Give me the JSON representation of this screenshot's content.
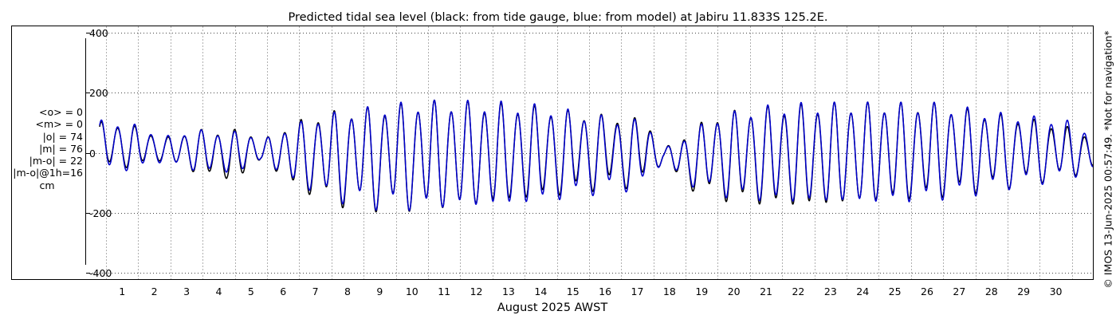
{
  "stats": {
    "lines": [
      "<o> = 0",
      "<m> = 0",
      "|o| = 74",
      "|m| = 76",
      "|m-o| = 22",
      "|m-o|@1h=16"
    ],
    "unit": "cm"
  },
  "credit": "© IMOS 13-Jun-2025 00:57:49. *Not for navigation*",
  "colors": {
    "observed": "#000000",
    "model": "#0000cc",
    "grid": "#b0b0b0"
  },
  "chart_data": {
    "type": "line",
    "title": "Predicted tidal sea level (black: from tide gauge, blue: from model) at Jabiru 11.833S 125.2E.",
    "xlabel": "August 2025 AWST",
    "ylabel": "",
    "xlim": [
      0.3,
      31.15
    ],
    "ylim": [
      -420,
      420
    ],
    "x_ticks": [
      1,
      2,
      3,
      4,
      5,
      6,
      7,
      8,
      9,
      10,
      11,
      12,
      13,
      14,
      15,
      16,
      17,
      18,
      19,
      20,
      21,
      22,
      23,
      24,
      25,
      26,
      27,
      28,
      29,
      30
    ],
    "x_tick_labels": [
      "1",
      "2",
      "3",
      "4",
      "5",
      "6",
      "7",
      "8",
      "9",
      "10",
      "11",
      "12",
      "13",
      "14",
      "15",
      "16",
      "17",
      "18",
      "19",
      "20",
      "21",
      "22",
      "23",
      "24",
      "25",
      "26",
      "27",
      "28",
      "29",
      "30"
    ],
    "y_ticks": [
      -400,
      -200,
      0,
      200,
      400
    ],
    "y_tick_labels": [
      "-400",
      "-200",
      "0",
      "200",
      "400"
    ],
    "grid": true,
    "legend": "none",
    "series_defaults": {
      "period_days": 0.5175,
      "phase_day": 0.35
    },
    "series": [
      {
        "days": [
          0.3,
          1.3,
          2.3,
          3.3,
          4.3,
          4.8,
          5.3,
          6.3,
          7.3,
          8.3,
          9.3,
          10.3,
          11.3,
          12.3,
          13.3,
          14.3,
          15.3,
          16.3,
          17.3,
          17.8,
          18.3,
          19.3,
          20.3,
          21.3,
          22.3,
          23.3,
          24.3,
          25.3,
          26.3,
          27.3,
          28.3,
          29.3,
          30.3,
          31.15
        ],
        "high": [
          95,
          85,
          45,
          70,
          65,
          75,
          35,
          90,
          120,
          130,
          140,
          155,
          155,
          150,
          145,
          135,
          120,
          110,
          100,
          10,
          40,
          110,
          130,
          140,
          145,
          150,
          150,
          150,
          150,
          130,
          115,
          100,
          80,
          50
        ],
        "low": [
          -40,
          -40,
          -20,
          -60,
          -80,
          -70,
          -20,
          -100,
          -140,
          -160,
          -165,
          -170,
          -165,
          -160,
          -145,
          -130,
          -110,
          -95,
          -90,
          -20,
          -90,
          -130,
          -150,
          -160,
          -165,
          -160,
          -150,
          -140,
          -130,
          -115,
          -100,
          -85,
          -70,
          -50
        ],
        "diurnal_ht": [
          45,
          40,
          35,
          30,
          25,
          15,
          5,
          -30,
          -60,
          -70,
          -60,
          -40,
          -20,
          -10,
          5,
          30,
          55,
          70,
          80,
          75,
          70,
          60,
          40,
          20,
          10,
          0,
          -10,
          -25,
          -40,
          -55,
          -60,
          -65,
          -60,
          -50
        ]
      },
      {
        "days": [
          0.3,
          1.3,
          2.3,
          3.3,
          4.3,
          4.8,
          5.3,
          6.3,
          7.3,
          8.3,
          9.3,
          10.3,
          11.3,
          12.3,
          13.3,
          14.3,
          15.3,
          16.3,
          17.3,
          17.8,
          18.3,
          19.3,
          20.3,
          21.3,
          22.3,
          23.3,
          24.3,
          25.3,
          26.3,
          27.3,
          28.3,
          29.3,
          30.3,
          31.15
        ],
        "high": [
          100,
          90,
          50,
          70,
          60,
          70,
          35,
          85,
          115,
          130,
          145,
          155,
          155,
          155,
          150,
          140,
          120,
          105,
          95,
          10,
          35,
          105,
          130,
          145,
          150,
          150,
          150,
          150,
          150,
          135,
          120,
          110,
          100,
          60
        ],
        "low": [
          -50,
          -50,
          -25,
          -55,
          -60,
          -55,
          -20,
          -90,
          -130,
          -155,
          -165,
          -170,
          -165,
          -165,
          -160,
          -145,
          -125,
          -110,
          -100,
          -20,
          -80,
          -120,
          -140,
          -150,
          -155,
          -155,
          -155,
          -150,
          -140,
          -125,
          -105,
          -90,
          -75,
          -55
        ],
        "diurnal_ht": [
          40,
          38,
          33,
          28,
          22,
          12,
          3,
          -25,
          -50,
          -60,
          -55,
          -35,
          -18,
          -8,
          5,
          28,
          50,
          62,
          70,
          68,
          62,
          55,
          38,
          20,
          10,
          0,
          -10,
          -25,
          -38,
          -50,
          -55,
          -58,
          -55,
          -45
        ]
      }
    ]
  }
}
